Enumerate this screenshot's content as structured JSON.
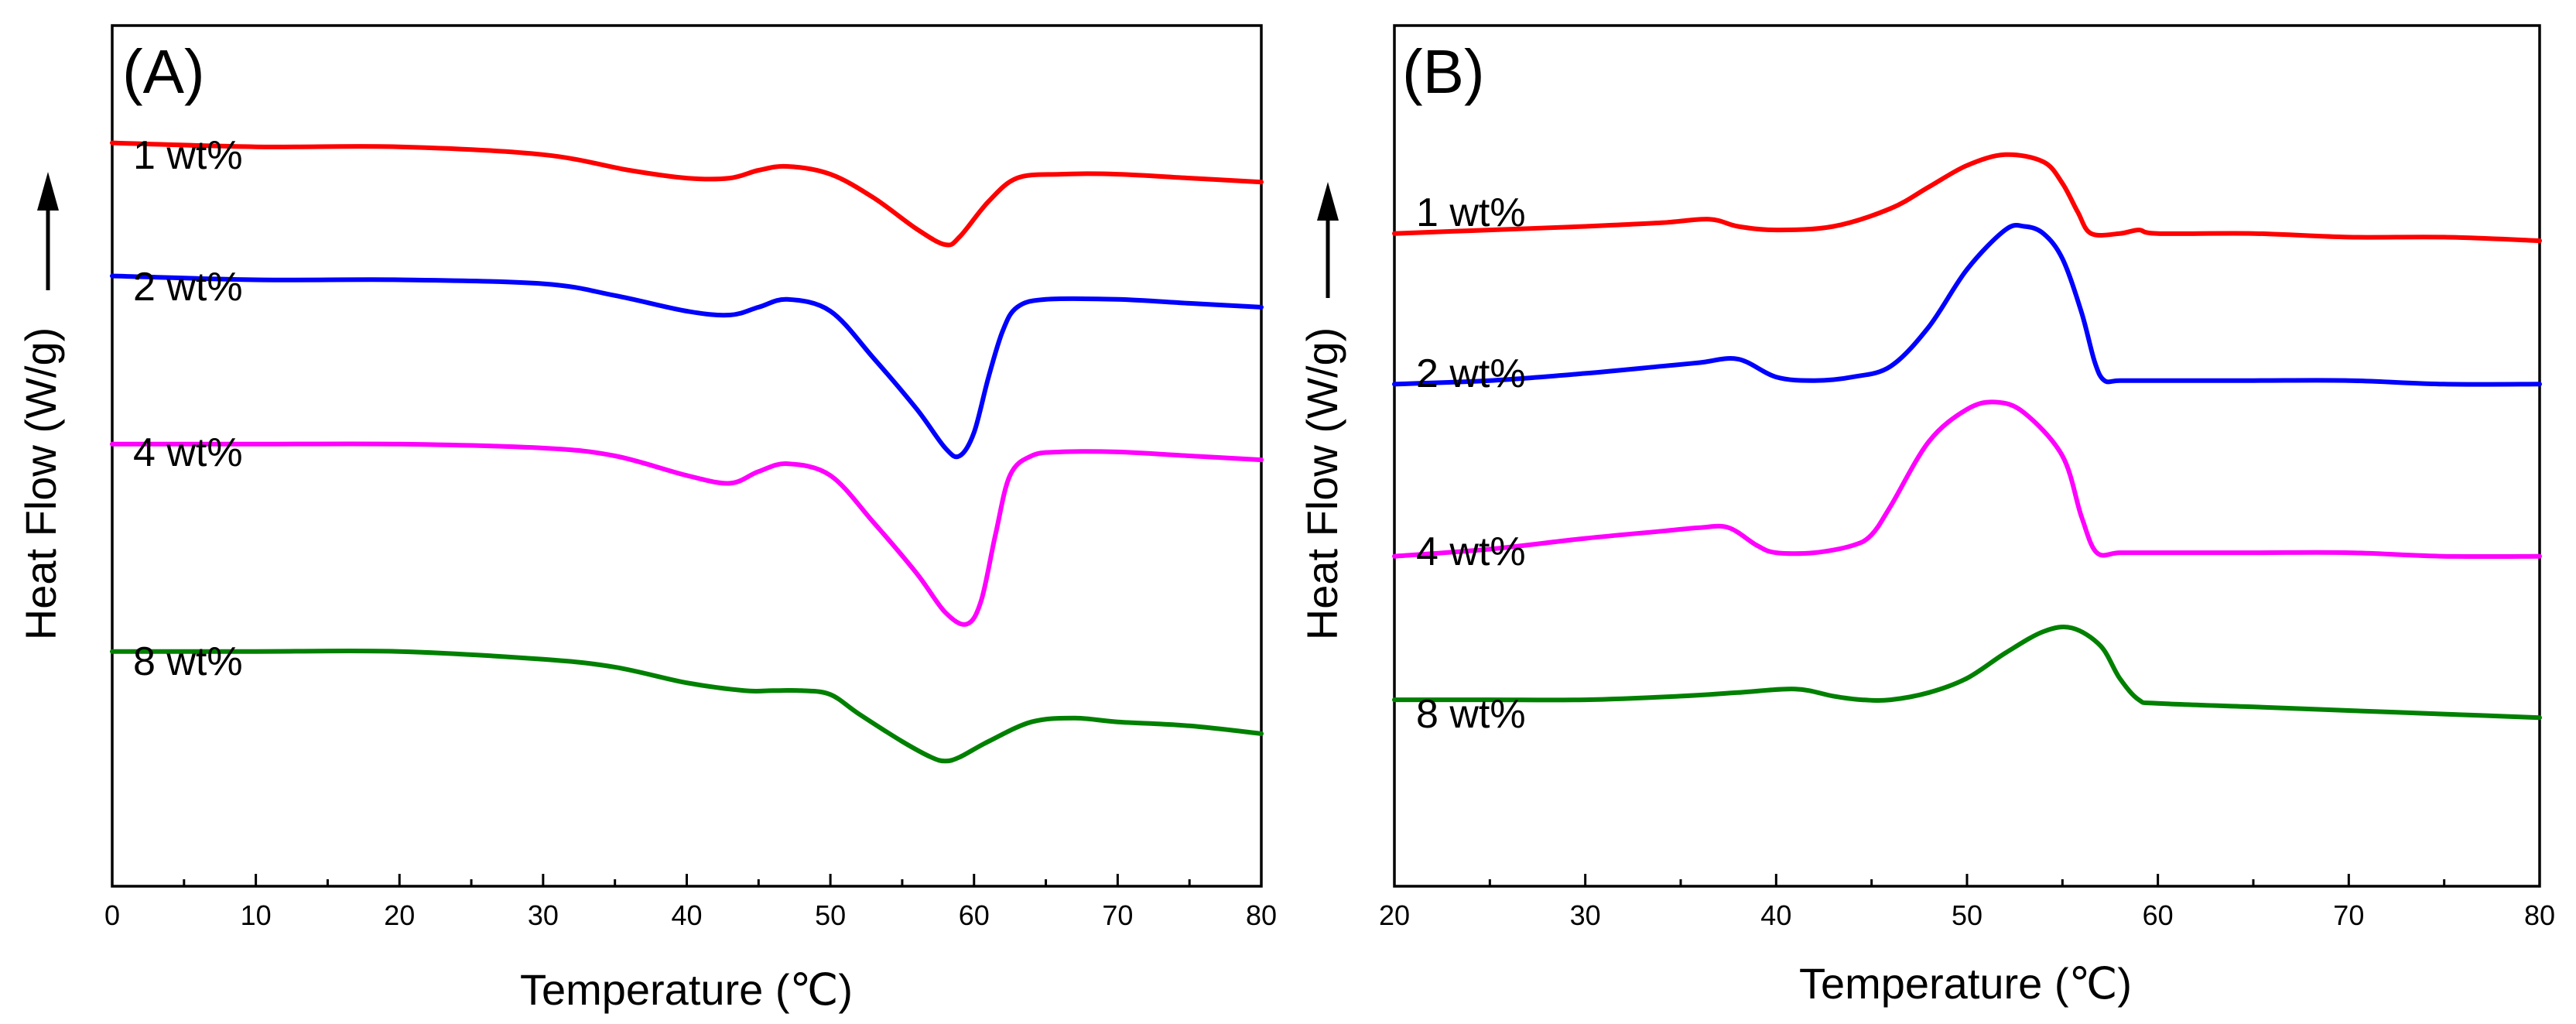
{
  "chart_data": [
    {
      "type": "line",
      "panel_label": "(A)",
      "xlabel": "Temperature (℃)",
      "ylabel": "Heat Flow (W/g)",
      "xlim": [
        0,
        80
      ],
      "xticks": [
        "0",
        "10",
        "20",
        "30",
        "40",
        "50",
        "60",
        "70",
        "80"
      ],
      "y_ticks_shown": false,
      "arrow": "up",
      "series": [
        {
          "name": "1 wt%",
          "color": "#ff0000",
          "x": [
            0,
            10,
            20,
            30,
            36,
            40,
            43,
            45,
            47,
            50,
            53,
            56,
            58,
            59,
            61,
            63,
            66,
            70,
            75,
            80
          ],
          "y": [
            0.9,
            0.89,
            0.89,
            0.87,
            0.83,
            0.81,
            0.81,
            0.83,
            0.84,
            0.82,
            0.76,
            0.68,
            0.64,
            0.66,
            0.75,
            0.81,
            0.82,
            0.82,
            0.81,
            0.8
          ]
        },
        {
          "name": "2 wt%",
          "color": "#0000ff",
          "x": [
            0,
            10,
            20,
            30,
            35,
            40,
            43,
            45,
            47,
            50,
            53,
            56,
            58,
            59,
            60,
            61,
            62,
            63,
            65,
            70,
            75,
            80
          ],
          "y": [
            0.56,
            0.55,
            0.55,
            0.54,
            0.51,
            0.47,
            0.46,
            0.48,
            0.5,
            0.47,
            0.35,
            0.22,
            0.12,
            0.1,
            0.16,
            0.3,
            0.42,
            0.48,
            0.5,
            0.5,
            0.49,
            0.48
          ]
        },
        {
          "name": "4 wt%",
          "color": "#ff00ff",
          "x": [
            0,
            10,
            20,
            30,
            35,
            40,
            43,
            45,
            47,
            50,
            53,
            56,
            58,
            59.5,
            60.5,
            61.5,
            62.5,
            64,
            66,
            70,
            75,
            80
          ],
          "y": [
            0.13,
            0.13,
            0.13,
            0.12,
            0.1,
            0.05,
            0.03,
            0.06,
            0.08,
            0.05,
            -0.07,
            -0.2,
            -0.3,
            -0.33,
            -0.27,
            -0.1,
            0.05,
            0.1,
            0.11,
            0.11,
            0.1,
            0.09
          ]
        },
        {
          "name": "8 wt%",
          "color": "#008000",
          "x": [
            0,
            10,
            20,
            30,
            35,
            40,
            44,
            46,
            48,
            50,
            52,
            55,
            57,
            58,
            59,
            61,
            64,
            67,
            70,
            75,
            80
          ],
          "y": [
            -0.4,
            -0.4,
            -0.4,
            -0.42,
            -0.44,
            -0.48,
            -0.5,
            -0.5,
            -0.5,
            -0.51,
            -0.56,
            -0.63,
            -0.67,
            -0.68,
            -0.67,
            -0.63,
            -0.58,
            -0.57,
            -0.58,
            -0.59,
            -0.61
          ]
        }
      ]
    },
    {
      "type": "line",
      "panel_label": "(B)",
      "xlabel": "Temperature (℃)",
      "ylabel": "Heat Flow (W/g)",
      "xlim": [
        20,
        80
      ],
      "xticks": [
        "20",
        "30",
        "40",
        "50",
        "60",
        "70",
        "80"
      ],
      "y_ticks_shown": false,
      "arrow": "up",
      "series": [
        {
          "name": "1 wt%",
          "color": "#ff0000",
          "x": [
            20,
            25,
            30,
            34,
            36.5,
            38,
            40,
            43,
            46,
            48,
            50,
            52,
            54,
            55,
            55.8,
            56.5,
            58,
            59,
            60,
            65,
            70,
            75,
            80
          ],
          "y": [
            0.62,
            0.63,
            0.64,
            0.65,
            0.66,
            0.64,
            0.63,
            0.64,
            0.69,
            0.75,
            0.81,
            0.84,
            0.82,
            0.76,
            0.68,
            0.62,
            0.62,
            0.63,
            0.62,
            0.62,
            0.61,
            0.61,
            0.6
          ]
        },
        {
          "name": "2 wt%",
          "color": "#0000ff",
          "x": [
            20,
            25,
            30,
            34,
            36,
            38,
            40,
            42,
            44,
            46,
            48,
            50,
            52,
            53,
            54,
            55,
            56,
            56.7,
            57.2,
            58,
            60,
            65,
            70,
            75,
            80
          ],
          "y": [
            0.2,
            0.21,
            0.23,
            0.25,
            0.26,
            0.27,
            0.22,
            0.21,
            0.22,
            0.25,
            0.36,
            0.52,
            0.63,
            0.64,
            0.62,
            0.55,
            0.4,
            0.26,
            0.21,
            0.21,
            0.21,
            0.21,
            0.21,
            0.2,
            0.2
          ]
        },
        {
          "name": "4 wt%",
          "color": "#ff00ff",
          "x": [
            20,
            25,
            30,
            34,
            36,
            37.5,
            39,
            40,
            42,
            44,
            45,
            46,
            48,
            50,
            51.5,
            53,
            55,
            56,
            56.8,
            58,
            60,
            65,
            70,
            75,
            80
          ],
          "y": [
            -0.28,
            -0.26,
            -0.23,
            -0.21,
            -0.2,
            -0.2,
            -0.25,
            -0.27,
            -0.27,
            -0.25,
            -0.22,
            -0.14,
            0.04,
            0.13,
            0.15,
            0.12,
            0.0,
            -0.17,
            -0.27,
            -0.27,
            -0.27,
            -0.27,
            -0.27,
            -0.28,
            -0.28
          ]
        },
        {
          "name": "8 wt%",
          "color": "#008000",
          "x": [
            20,
            25,
            30,
            35,
            38,
            41,
            43,
            44.5,
            46,
            48,
            50,
            52,
            54,
            55.5,
            57,
            58,
            59,
            60,
            65,
            70,
            75,
            80
          ],
          "y": [
            -0.68,
            -0.68,
            -0.68,
            -0.67,
            -0.66,
            -0.65,
            -0.67,
            -0.68,
            -0.68,
            -0.66,
            -0.62,
            -0.55,
            -0.49,
            -0.48,
            -0.53,
            -0.62,
            -0.68,
            -0.69,
            -0.7,
            -0.71,
            -0.72,
            -0.73
          ]
        }
      ]
    }
  ]
}
